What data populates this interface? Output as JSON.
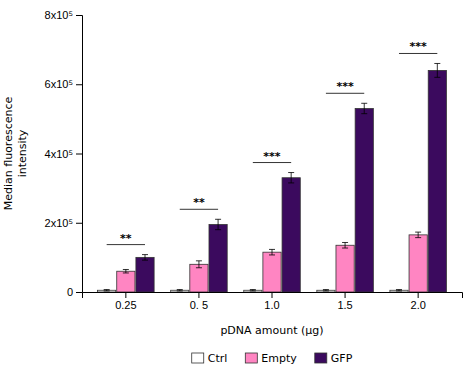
{
  "chart_data": {
    "type": "bar",
    "categories": [
      "0.25",
      "0. 5",
      "1.0",
      "1.5",
      "2.0"
    ],
    "series": [
      {
        "name": "Ctrl",
        "color": "#ffffff",
        "values": [
          5000,
          5000,
          5000,
          5000,
          5000
        ],
        "errors": [
          2000,
          2000,
          2000,
          2000,
          2000
        ]
      },
      {
        "name": "Empty",
        "color": "#ff85c2",
        "values": [
          60000,
          80000,
          115000,
          135000,
          165000
        ],
        "errors": [
          5000,
          10000,
          8000,
          8000,
          8000
        ]
      },
      {
        "name": "GFP",
        "color": "#3b0a5e",
        "values": [
          100000,
          195000,
          330000,
          530000,
          640000
        ],
        "errors": [
          8000,
          15000,
          15000,
          15000,
          20000
        ]
      }
    ],
    "ylim": [
      0,
      800000
    ],
    "yticks": [
      0,
      {
        "value": 200000,
        "label": "2x10⁵"
      },
      {
        "value": 400000,
        "label": "4x10⁵"
      },
      {
        "value": 600000,
        "label": "6x10⁵"
      },
      {
        "value": 800000,
        "label": "8x10⁵"
      }
    ],
    "ylabel": "Median fluorescence\nintensity",
    "xlabel": "pDNA amount (μg)",
    "annotations": [
      "**",
      "**",
      "***",
      "***",
      "***"
    ],
    "legend": "bottom",
    "grid": false
  }
}
